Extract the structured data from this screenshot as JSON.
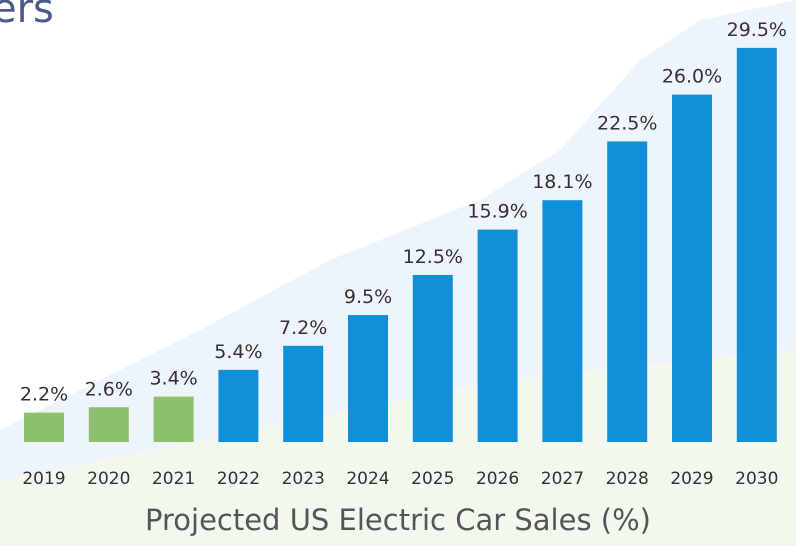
{
  "chart_data": {
    "type": "bar",
    "title": "ers",
    "x_label": "Projected US Electric Car Sales (%)",
    "categories": [
      "2019",
      "2020",
      "2021",
      "2022",
      "2023",
      "2024",
      "2025",
      "2026",
      "2027",
      "2028",
      "2029",
      "2030"
    ],
    "values": [
      2.2,
      2.6,
      3.4,
      5.4,
      7.2,
      9.5,
      12.5,
      15.9,
      18.1,
      22.5,
      26.0,
      29.5
    ],
    "value_labels": [
      "2.2%",
      "2.6%",
      "3.4%",
      "5.4%",
      "7.2%",
      "9.5%",
      "12.5%",
      "15.9%",
      "18.1%",
      "22.5%",
      "26.0%",
      "29.5%"
    ],
    "colors": [
      "#8cc06c",
      "#8cc06c",
      "#8cc06c",
      "#1190d9",
      "#1190d9",
      "#1190d9",
      "#1190d9",
      "#1190d9",
      "#1190d9",
      "#1190d9",
      "#1190d9",
      "#1190d9"
    ]
  }
}
